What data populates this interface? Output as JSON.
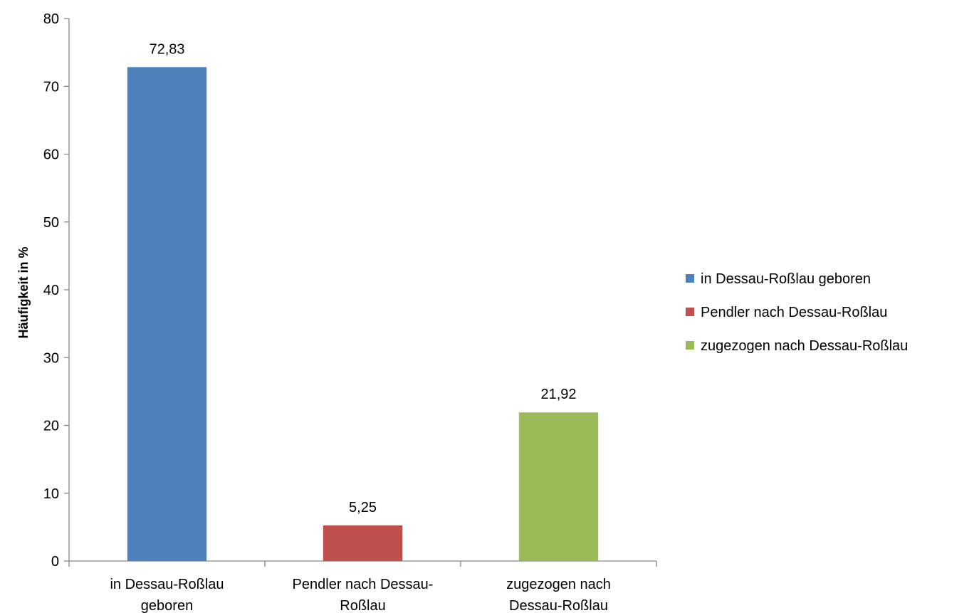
{
  "chart_data": {
    "type": "bar",
    "title": "",
    "xlabel": "",
    "ylabel": "Häufigkeit in %",
    "ylim": [
      0,
      80
    ],
    "yticks": [
      0,
      10,
      20,
      30,
      40,
      50,
      60,
      70,
      80
    ],
    "grid": false,
    "legend_position": "right",
    "categories": [
      [
        "in Dessau-Roßlau",
        "geboren"
      ],
      [
        "Pendler nach Dessau-",
        "Roßlau"
      ],
      [
        "zugezogen nach",
        "Dessau-Roßlau"
      ]
    ],
    "values": [
      72.83,
      5.25,
      21.92
    ],
    "value_labels": [
      "72,83",
      "5,25",
      "21,92"
    ],
    "colors": [
      "#4f81bd",
      "#c0504d",
      "#9bbb59"
    ],
    "legend": [
      "in Dessau-Roßlau geboren",
      "Pendler nach Dessau-Roßlau",
      "zugezogen nach Dessau-Roßlau"
    ]
  }
}
